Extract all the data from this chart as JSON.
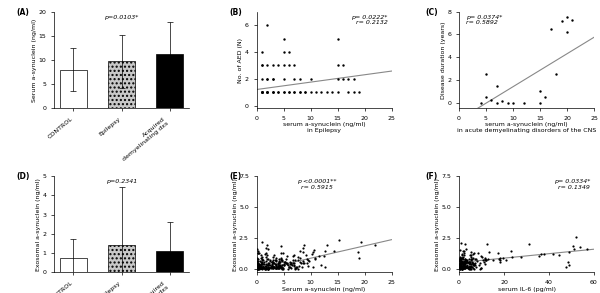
{
  "panel_A": {
    "label": "(A)",
    "categories": [
      "CONTROL",
      "Epilepsy",
      "Acquired\ndemyelinating dxs"
    ],
    "means": [
      8.0,
      9.7,
      11.3
    ],
    "errors": [
      4.5,
      5.5,
      6.5
    ],
    "bar_colors": [
      "white",
      "#c8c8c8",
      "black"
    ],
    "bar_hatches": [
      "",
      "....",
      ""
    ],
    "ylabel": "Serum a-synuclein (ng/ml)",
    "ylim": [
      0,
      20
    ],
    "yticks": [
      0,
      5,
      10,
      15,
      20
    ],
    "pvalue": "p=0.0103*"
  },
  "panel_B": {
    "label": "(B)",
    "xlabel": "serum a-synuclein (ng/ml)\nin Epilepsy",
    "ylabel": "No. of AED (N)",
    "xlim": [
      0,
      25
    ],
    "ylim": [
      -0.2,
      7
    ],
    "yticks": [
      0,
      2,
      4,
      6
    ],
    "xticks": [
      0,
      5,
      10,
      15,
      20,
      25
    ],
    "pvalue": "p= 0.0222*\nr= 0.2132",
    "scatter_x": [
      1,
      1,
      1,
      1,
      1,
      1,
      1,
      1,
      1,
      2,
      2,
      2,
      2,
      2,
      2,
      2,
      2,
      3,
      3,
      3,
      3,
      3,
      3,
      4,
      4,
      4,
      5,
      5,
      5,
      5,
      5,
      5,
      6,
      6,
      6,
      6,
      7,
      7,
      7,
      7,
      8,
      8,
      8,
      9,
      9,
      10,
      10,
      11,
      12,
      13,
      14,
      15,
      15,
      15,
      15,
      16,
      16,
      17,
      17,
      18,
      18,
      19
    ],
    "scatter_y": [
      1,
      1,
      1,
      1,
      1,
      2,
      3,
      3,
      4,
      1,
      1,
      1,
      1,
      2,
      2,
      3,
      6,
      1,
      1,
      1,
      2,
      2,
      3,
      1,
      1,
      3,
      1,
      1,
      2,
      3,
      4,
      5,
      1,
      1,
      3,
      4,
      1,
      1,
      2,
      3,
      1,
      1,
      2,
      1,
      1,
      1,
      2,
      1,
      1,
      1,
      1,
      1,
      2,
      3,
      5,
      2,
      3,
      1,
      2,
      1,
      2,
      1
    ],
    "slope": 0.055,
    "intercept": 1.2
  },
  "panel_C": {
    "label": "(C)",
    "xlabel": "serum a-synuclein (ng/ml)\nin acute demyelinating disorders of the CNS",
    "ylabel": "Disease duration (years)",
    "xlim": [
      0,
      25
    ],
    "ylim": [
      -0.5,
      8
    ],
    "yticks": [
      0,
      2,
      4,
      6,
      8
    ],
    "xticks": [
      0,
      5,
      10,
      15,
      20,
      25
    ],
    "pvalue": "p= 0.0374*\nr= 0.5892",
    "scatter_x": [
      4,
      5,
      5,
      6,
      7,
      7,
      8,
      9,
      10,
      12,
      15,
      15,
      16,
      17,
      18,
      19,
      20,
      20,
      21
    ],
    "scatter_y": [
      0,
      0.5,
      2.5,
      0.2,
      1.5,
      0,
      0.1,
      0,
      0,
      0,
      1,
      0,
      0.5,
      6.5,
      2.5,
      7.2,
      7.5,
      6.2,
      7.3
    ],
    "slope": 0.29,
    "intercept": -1.5
  },
  "panel_D": {
    "label": "(D)",
    "categories": [
      "CONTROL",
      "Epilepsy",
      "Acquired\ndemyelinating dxs"
    ],
    "means": [
      0.75,
      1.4,
      1.1
    ],
    "errors": [
      1.0,
      3.0,
      1.5
    ],
    "bar_colors": [
      "white",
      "#c8c8c8",
      "black"
    ],
    "bar_hatches": [
      "",
      "....",
      ""
    ],
    "ylabel": "Exosomal a-synuclein (ng/ml)",
    "ylim": [
      0,
      5
    ],
    "yticks": [
      0,
      1,
      2,
      3,
      4,
      5
    ],
    "pvalue": "p=0.2341"
  },
  "panel_E": {
    "label": "(E)",
    "xlabel": "Serum a-synuclein (ng/ml)",
    "ylabel": "Exosomal a-synuclein (ng/ml)",
    "xlim": [
      0,
      25
    ],
    "ylim": [
      -0.3,
      7.5
    ],
    "yticks": [
      0.0,
      2.5,
      5.0,
      7.5
    ],
    "xticks": [
      0,
      5,
      10,
      15,
      20,
      25
    ],
    "pvalue": "p <0.0001**\nr= 0.5915",
    "slope": 0.1,
    "intercept": -0.15
  },
  "panel_F": {
    "label": "(F)",
    "xlabel": "serum IL-6 (pg/ml)",
    "ylabel": "Exosomal a-synuclein (ng/ml)",
    "xlim": [
      0,
      60
    ],
    "ylim": [
      -0.3,
      7.5
    ],
    "yticks": [
      0.0,
      2.5,
      5.0,
      7.5
    ],
    "xticks": [
      0,
      20,
      40,
      60
    ],
    "pvalue": "p= 0.0334*\nr= 0.1349",
    "slope": 0.018,
    "intercept": 0.5
  },
  "background_color": "white",
  "font_size": 4.5,
  "annotation_font_size": 4.5,
  "line_color": "#888888"
}
